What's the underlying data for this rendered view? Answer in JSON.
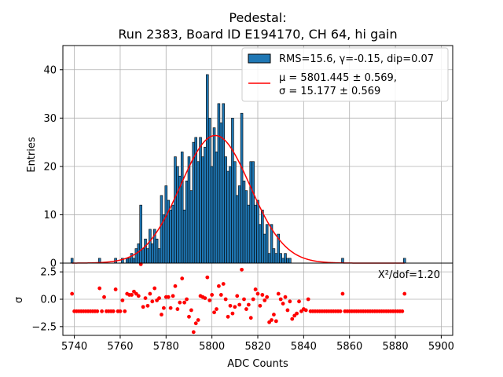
{
  "chart_data": {
    "type": "bar",
    "title_line1": "Pedestal:",
    "title_line2": "Run 2383, Board ID E194170, CH 64, hi gain",
    "xlabel": "ADC Counts",
    "ylabel_top": "Entries",
    "ylabel_bottom": "σ",
    "xlim": [
      5735,
      5905
    ],
    "ylim_top": [
      0,
      45
    ],
    "ylim_bottom": [
      -3.3,
      3.3
    ],
    "xticks": [
      5740,
      5760,
      5780,
      5800,
      5820,
      5840,
      5860,
      5880,
      5900
    ],
    "yticks_top": [
      0,
      10,
      20,
      30,
      40
    ],
    "yticks_bottom": [
      -2.5,
      0.0,
      2.5
    ],
    "ytick_labels_bottom": [
      "−2.5",
      "0.0",
      "2.5"
    ],
    "grid": true,
    "legend_position": "top-right",
    "legend_hist_label": "RMS=15.6, γ=-0.15, dip=0.07",
    "legend_fit_line1": "μ = 5801.445 ± 0.569,",
    "legend_fit_line2": "σ = 15.177 ± 0.569",
    "chi2_label": "X²/dof=1.20",
    "fit_mu": 5801.445,
    "fit_sigma": 15.177,
    "fit_amplitude": 26.4,
    "histogram": {
      "bin_width": 1,
      "bins": [
        [
          5739,
          1
        ],
        [
          5751,
          1
        ],
        [
          5758,
          1
        ],
        [
          5761,
          1
        ],
        [
          5763,
          1
        ],
        [
          5764,
          1
        ],
        [
          5765,
          2
        ],
        [
          5766,
          1
        ],
        [
          5767,
          3
        ],
        [
          5768,
          4
        ],
        [
          5769,
          12
        ],
        [
          5770,
          3
        ],
        [
          5771,
          5
        ],
        [
          5772,
          3
        ],
        [
          5773,
          7
        ],
        [
          5774,
          4
        ],
        [
          5775,
          7
        ],
        [
          5776,
          5
        ],
        [
          5777,
          3
        ],
        [
          5778,
          14
        ],
        [
          5779,
          10
        ],
        [
          5780,
          16
        ],
        [
          5781,
          13
        ],
        [
          5782,
          11
        ],
        [
          5783,
          12
        ],
        [
          5784,
          22
        ],
        [
          5785,
          20
        ],
        [
          5786,
          18
        ],
        [
          5787,
          23
        ],
        [
          5788,
          11
        ],
        [
          5789,
          17
        ],
        [
          5790,
          22
        ],
        [
          5791,
          15
        ],
        [
          5792,
          25
        ],
        [
          5793,
          26
        ],
        [
          5794,
          21
        ],
        [
          5795,
          26
        ],
        [
          5796,
          22
        ],
        [
          5797,
          24
        ],
        [
          5798,
          39
        ],
        [
          5799,
          30
        ],
        [
          5800,
          20
        ],
        [
          5801,
          28
        ],
        [
          5802,
          23
        ],
        [
          5803,
          33
        ],
        [
          5804,
          29
        ],
        [
          5805,
          33
        ],
        [
          5806,
          22
        ],
        [
          5807,
          19
        ],
        [
          5808,
          20
        ],
        [
          5809,
          30
        ],
        [
          5810,
          21
        ],
        [
          5811,
          14
        ],
        [
          5812,
          16
        ],
        [
          5813,
          31
        ],
        [
          5814,
          17
        ],
        [
          5815,
          15
        ],
        [
          5816,
          12
        ],
        [
          5817,
          21
        ],
        [
          5818,
          21
        ],
        [
          5819,
          12
        ],
        [
          5820,
          13
        ],
        [
          5821,
          8
        ],
        [
          5822,
          11
        ],
        [
          5823,
          6
        ],
        [
          5824,
          8
        ],
        [
          5825,
          2
        ],
        [
          5826,
          8
        ],
        [
          5827,
          3
        ],
        [
          5828,
          2
        ],
        [
          5829,
          6
        ],
        [
          5830,
          2
        ],
        [
          5831,
          1
        ],
        [
          5832,
          2
        ],
        [
          5833,
          1
        ],
        [
          5834,
          1
        ],
        [
          5857,
          1
        ],
        [
          5884,
          1
        ]
      ]
    },
    "residuals": [
      [
        5739,
        0.5
      ],
      [
        5740,
        -1.1
      ],
      [
        5741,
        -1.1
      ],
      [
        5742,
        -1.1
      ],
      [
        5743,
        -1.1
      ],
      [
        5744,
        -1.1
      ],
      [
        5745,
        -1.1
      ],
      [
        5746,
        -1.1
      ],
      [
        5747,
        -1.1
      ],
      [
        5748,
        -1.1
      ],
      [
        5749,
        -1.1
      ],
      [
        5750,
        -1.1
      ],
      [
        5751,
        1.0
      ],
      [
        5752,
        -1.1
      ],
      [
        5753,
        0.2
      ],
      [
        5754,
        -1.1
      ],
      [
        5755,
        -1.1
      ],
      [
        5756,
        -1.1
      ],
      [
        5757,
        -1.1
      ],
      [
        5758,
        0.9
      ],
      [
        5759,
        -1.1
      ],
      [
        5760,
        -1.1
      ],
      [
        5761,
        -0.1
      ],
      [
        5762,
        -1.1
      ],
      [
        5763,
        0.5
      ],
      [
        5764,
        0.4
      ],
      [
        5765,
        0.4
      ],
      [
        5766,
        0.7
      ],
      [
        5767,
        0.5
      ],
      [
        5768,
        0.3
      ],
      [
        5769,
        3.2
      ],
      [
        5770,
        -0.7
      ],
      [
        5771,
        0.1
      ],
      [
        5772,
        -0.6
      ],
      [
        5773,
        0.5
      ],
      [
        5774,
        -0.2
      ],
      [
        5775,
        1.0
      ],
      [
        5776,
        -0.1
      ],
      [
        5777,
        0.1
      ],
      [
        5778,
        -1.4
      ],
      [
        5779,
        -0.8
      ],
      [
        5780,
        0.2
      ],
      [
        5781,
        0.2
      ],
      [
        5782,
        -0.8
      ],
      [
        5783,
        0.3
      ],
      [
        5784,
        1.2
      ],
      [
        5785,
        -0.9
      ],
      [
        5786,
        -0.3
      ],
      [
        5787,
        1.9
      ],
      [
        5788,
        -0.3
      ],
      [
        5789,
        0.0
      ],
      [
        5790,
        -1.6
      ],
      [
        5791,
        -1.0
      ],
      [
        5792,
        -3.0
      ],
      [
        5793,
        -2.2
      ],
      [
        5794,
        -1.9
      ],
      [
        5795,
        0.3
      ],
      [
        5796,
        0.2
      ],
      [
        5797,
        0.1
      ],
      [
        5798,
        2.0
      ],
      [
        5799,
        -0.1
      ],
      [
        5800,
        0.4
      ],
      [
        5801,
        -1.2
      ],
      [
        5802,
        -0.9
      ],
      [
        5803,
        1.2
      ],
      [
        5804,
        0.4
      ],
      [
        5805,
        1.4
      ],
      [
        5806,
        0.0
      ],
      [
        5807,
        -1.6
      ],
      [
        5808,
        -0.6
      ],
      [
        5809,
        -1.3
      ],
      [
        5810,
        -0.7
      ],
      [
        5811,
        0.3
      ],
      [
        5812,
        -0.5
      ],
      [
        5813,
        2.7
      ],
      [
        5814,
        0.0
      ],
      [
        5815,
        -0.9
      ],
      [
        5816,
        -0.5
      ],
      [
        5817,
        -1.7
      ],
      [
        5818,
        0.0
      ],
      [
        5819,
        0.9
      ],
      [
        5820,
        0.5
      ],
      [
        5821,
        -0.6
      ],
      [
        5822,
        0.4
      ],
      [
        5823,
        -0.1
      ],
      [
        5824,
        0.2
      ],
      [
        5825,
        -2.1
      ],
      [
        5826,
        -1.9
      ],
      [
        5827,
        -1.4
      ],
      [
        5828,
        -2.0
      ],
      [
        5829,
        0.5
      ],
      [
        5830,
        0.0
      ],
      [
        5831,
        -0.4
      ],
      [
        5832,
        0.2
      ],
      [
        5833,
        -1.0
      ],
      [
        5834,
        -0.2
      ],
      [
        5835,
        -1.8
      ],
      [
        5836,
        -1.5
      ],
      [
        5837,
        -1.3
      ],
      [
        5838,
        -0.2
      ],
      [
        5839,
        -1.1
      ],
      [
        5840,
        -0.9
      ],
      [
        5841,
        -1.0
      ],
      [
        5842,
        0.0
      ],
      [
        5843,
        -1.1
      ],
      [
        5844,
        -1.1
      ],
      [
        5845,
        -1.1
      ],
      [
        5846,
        -1.1
      ],
      [
        5847,
        -1.1
      ],
      [
        5848,
        -1.1
      ],
      [
        5849,
        -1.1
      ],
      [
        5850,
        -1.1
      ],
      [
        5851,
        -1.1
      ],
      [
        5852,
        -1.1
      ],
      [
        5853,
        -1.1
      ],
      [
        5854,
        -1.1
      ],
      [
        5855,
        -1.1
      ],
      [
        5856,
        -1.1
      ],
      [
        5857,
        0.5
      ],
      [
        5858,
        -1.1
      ],
      [
        5859,
        -1.1
      ],
      [
        5860,
        -1.1
      ],
      [
        5861,
        -1.1
      ],
      [
        5862,
        -1.1
      ],
      [
        5863,
        -1.1
      ],
      [
        5864,
        -1.1
      ],
      [
        5865,
        -1.1
      ],
      [
        5866,
        -1.1
      ],
      [
        5867,
        -1.1
      ],
      [
        5868,
        -1.1
      ],
      [
        5869,
        -1.1
      ],
      [
        5870,
        -1.1
      ],
      [
        5871,
        -1.1
      ],
      [
        5872,
        -1.1
      ],
      [
        5873,
        -1.1
      ],
      [
        5874,
        -1.1
      ],
      [
        5875,
        -1.1
      ],
      [
        5876,
        -1.1
      ],
      [
        5877,
        -1.1
      ],
      [
        5878,
        -1.1
      ],
      [
        5879,
        -1.1
      ],
      [
        5880,
        -1.1
      ],
      [
        5881,
        -1.1
      ],
      [
        5882,
        -1.1
      ],
      [
        5883,
        -1.1
      ],
      [
        5884,
        0.5
      ]
    ],
    "colors": {
      "bar_fill": "#1f77b4",
      "bar_edge": "#000000",
      "fit_line": "#ff0000",
      "residual_marker": "#ff0000",
      "grid": "#b0b0b0"
    }
  }
}
